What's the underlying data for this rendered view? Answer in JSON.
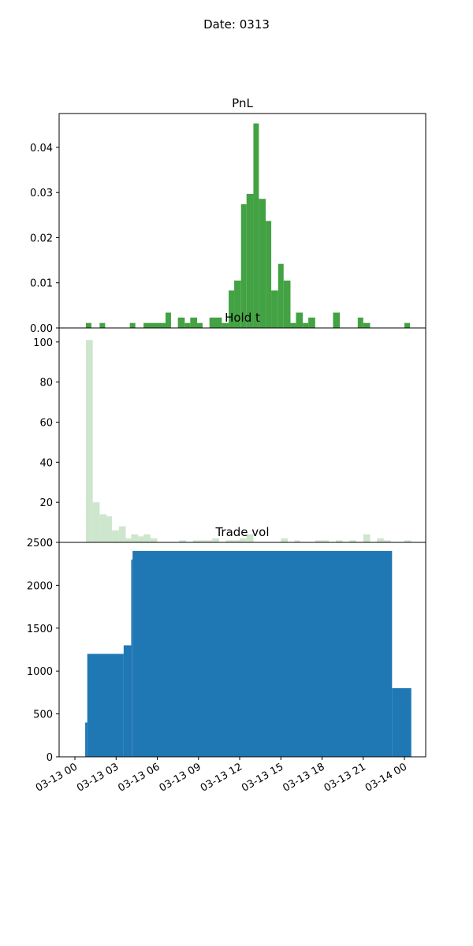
{
  "figure": {
    "title": "Date: 0313"
  },
  "chart_data": [
    {
      "type": "bar",
      "title": "PnL",
      "color": "#43a243",
      "ylim": [
        0,
        0.0475
      ],
      "yticks": [
        0.0,
        0.01,
        0.02,
        0.03,
        0.04
      ],
      "ytick_labels": [
        "0.00",
        "0.01",
        "0.02",
        "0.03",
        "0.04"
      ],
      "grid": false,
      "bins": [
        {
          "start": 0.8,
          "end": 1.2,
          "value": 0.0011
        },
        {
          "start": 1.8,
          "end": 2.2,
          "value": 0.0011
        },
        {
          "start": 4.0,
          "end": 4.4,
          "value": 0.0011
        },
        {
          "start": 5.0,
          "end": 6.6,
          "value": 0.0011
        },
        {
          "start": 6.6,
          "end": 7.0,
          "value": 0.0034
        },
        {
          "start": 7.5,
          "end": 8.0,
          "value": 0.0023
        },
        {
          "start": 8.0,
          "end": 8.4,
          "value": 0.0011
        },
        {
          "start": 8.4,
          "end": 8.9,
          "value": 0.0023
        },
        {
          "start": 8.9,
          "end": 9.3,
          "value": 0.0011
        },
        {
          "start": 9.8,
          "end": 10.7,
          "value": 0.0023
        },
        {
          "start": 10.7,
          "end": 11.2,
          "value": 0.0011
        },
        {
          "start": 11.2,
          "end": 11.6,
          "value": 0.0083
        },
        {
          "start": 11.6,
          "end": 12.1,
          "value": 0.0105
        },
        {
          "start": 12.1,
          "end": 12.5,
          "value": 0.0274
        },
        {
          "start": 12.5,
          "end": 13.0,
          "value": 0.0297
        },
        {
          "start": 13.0,
          "end": 13.4,
          "value": 0.0453
        },
        {
          "start": 13.4,
          "end": 13.9,
          "value": 0.0286
        },
        {
          "start": 13.9,
          "end": 14.3,
          "value": 0.0237
        },
        {
          "start": 14.3,
          "end": 14.8,
          "value": 0.0083
        },
        {
          "start": 14.8,
          "end": 15.2,
          "value": 0.0142
        },
        {
          "start": 15.2,
          "end": 15.7,
          "value": 0.0105
        },
        {
          "start": 15.7,
          "end": 16.1,
          "value": 0.0011
        },
        {
          "start": 16.1,
          "end": 16.6,
          "value": 0.0034
        },
        {
          "start": 16.6,
          "end": 17.0,
          "value": 0.0011
        },
        {
          "start": 17.0,
          "end": 17.5,
          "value": 0.0023
        },
        {
          "start": 18.8,
          "end": 19.3,
          "value": 0.0034
        },
        {
          "start": 20.6,
          "end": 21.0,
          "value": 0.0023
        },
        {
          "start": 21.0,
          "end": 21.5,
          "value": 0.0011
        },
        {
          "start": 24.0,
          "end": 24.4,
          "value": 0.0011
        }
      ]
    },
    {
      "type": "bar",
      "title": "Hold t",
      "color": "#cde6cd",
      "ylim": [
        0,
        107
      ],
      "yticks": [
        0,
        20,
        40,
        60,
        80,
        100
      ],
      "ytick_labels": [
        "0",
        "20",
        "40",
        "60",
        "80",
        "100"
      ],
      "grid": false,
      "bins": [
        {
          "start": 0.8,
          "end": 1.3,
          "value": 101
        },
        {
          "start": 1.3,
          "end": 1.8,
          "value": 20
        },
        {
          "start": 1.8,
          "end": 2.3,
          "value": 14
        },
        {
          "start": 2.3,
          "end": 2.7,
          "value": 13
        },
        {
          "start": 2.7,
          "end": 3.2,
          "value": 6
        },
        {
          "start": 3.2,
          "end": 3.7,
          "value": 8
        },
        {
          "start": 3.7,
          "end": 4.1,
          "value": 2
        },
        {
          "start": 4.1,
          "end": 4.6,
          "value": 4
        },
        {
          "start": 4.6,
          "end": 5.0,
          "value": 3
        },
        {
          "start": 5.0,
          "end": 5.5,
          "value": 4
        },
        {
          "start": 5.5,
          "end": 6.0,
          "value": 2
        },
        {
          "start": 7.6,
          "end": 8.1,
          "value": 1
        },
        {
          "start": 8.6,
          "end": 10.0,
          "value": 1
        },
        {
          "start": 10.0,
          "end": 10.5,
          "value": 2
        },
        {
          "start": 11.0,
          "end": 12.0,
          "value": 1
        },
        {
          "start": 12.0,
          "end": 12.5,
          "value": 2
        },
        {
          "start": 12.5,
          "end": 13.0,
          "value": 4
        },
        {
          "start": 15.0,
          "end": 15.5,
          "value": 2
        },
        {
          "start": 16.0,
          "end": 16.4,
          "value": 1
        },
        {
          "start": 17.5,
          "end": 18.5,
          "value": 1
        },
        {
          "start": 19.0,
          "end": 19.5,
          "value": 1
        },
        {
          "start": 20.0,
          "end": 20.5,
          "value": 1
        },
        {
          "start": 21.0,
          "end": 21.5,
          "value": 4
        },
        {
          "start": 22.0,
          "end": 22.5,
          "value": 2
        },
        {
          "start": 22.5,
          "end": 23.0,
          "value": 1
        },
        {
          "start": 24.0,
          "end": 24.5,
          "value": 1
        }
      ]
    },
    {
      "type": "area",
      "title": "Trade vol",
      "color": "#1f77b4",
      "ylim": [
        0,
        2500
      ],
      "yticks": [
        0,
        500,
        1000,
        1500,
        2000,
        2500
      ],
      "ytick_labels": [
        "0",
        "500",
        "1000",
        "1500",
        "2000",
        "2500"
      ],
      "grid": false,
      "steps": [
        {
          "start": 0.75,
          "end": 0.9,
          "value": 400
        },
        {
          "start": 0.9,
          "end": 3.55,
          "value": 1200
        },
        {
          "start": 3.55,
          "end": 4.1,
          "value": 1300
        },
        {
          "start": 4.1,
          "end": 4.2,
          "value": 2300
        },
        {
          "start": 4.2,
          "end": 23.1,
          "value": 2400
        },
        {
          "start": 23.1,
          "end": 24.5,
          "value": 800
        }
      ]
    }
  ],
  "x_axis": {
    "range_hours": [
      -1.15,
      25.55
    ],
    "tick_hours": [
      0,
      3,
      6,
      9,
      12,
      15,
      18,
      21,
      24
    ],
    "tick_labels": [
      "03-13 00",
      "03-13 03",
      "03-13 06",
      "03-13 09",
      "03-13 12",
      "03-13 15",
      "03-13 18",
      "03-13 21",
      "03-14 00"
    ]
  }
}
